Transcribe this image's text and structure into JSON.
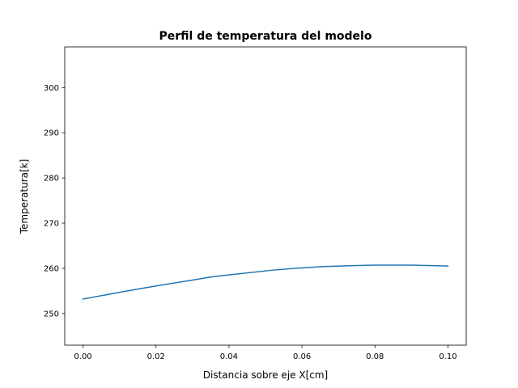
{
  "chart_data": {
    "type": "line",
    "title": "Perfil de temperatura del modelo",
    "xlabel": "Distancia sobre eje X[cm]",
    "ylabel": "Temperatura[k]",
    "xlim": [
      -0.005,
      0.105
    ],
    "ylim": [
      243,
      309
    ],
    "xticks": [
      0.0,
      0.02,
      0.04,
      0.06,
      0.08,
      0.1
    ],
    "xtick_labels": [
      "0.00",
      "0.02",
      "0.04",
      "0.06",
      "0.08",
      "0.10"
    ],
    "yticks": [
      250,
      260,
      270,
      280,
      290,
      300
    ],
    "ytick_labels": [
      "250",
      "260",
      "270",
      "280",
      "290",
      "300"
    ],
    "grid": false,
    "series": [
      {
        "color": "#1f77b4",
        "x": [
          0.0,
          0.01,
          0.02,
          0.03,
          0.036,
          0.044,
          0.052,
          0.058,
          0.066,
          0.074,
          0.08,
          0.09,
          0.1
        ],
        "y": [
          253.2,
          254.7,
          256.1,
          257.4,
          258.2,
          258.9,
          259.6,
          260.0,
          260.4,
          260.6,
          260.7,
          260.7,
          260.5
        ]
      }
    ]
  }
}
